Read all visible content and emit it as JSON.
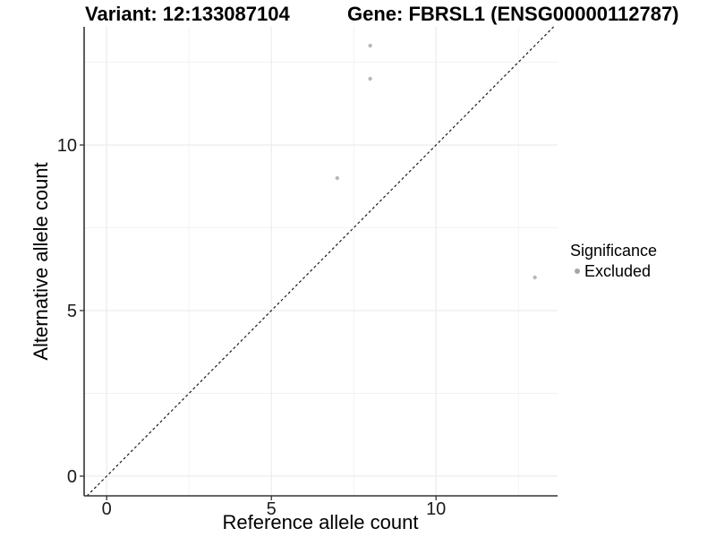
{
  "chart_data": {
    "type": "scatter",
    "titles": {
      "left": "Variant: 12:133087104",
      "right": "Gene: FBRSL1 (ENSG00000112787)"
    },
    "xlabel": "Reference allele count",
    "ylabel": "Alternative allele count",
    "x_ticks": {
      "values": [
        0,
        5,
        10
      ],
      "labels": [
        "0",
        "5",
        "10"
      ]
    },
    "y_ticks": {
      "values": [
        0,
        5,
        10
      ],
      "labels": [
        "0",
        "5",
        "10"
      ]
    },
    "x_minor_gridlines": [
      2.5,
      7.5,
      12.5
    ],
    "y_minor_gridlines": [
      2.5,
      7.5,
      12.5
    ],
    "xlim": [
      -0.68,
      13.7
    ],
    "ylim": [
      -0.6,
      13.57
    ],
    "grid": true,
    "identity_line": {
      "style": "dashed",
      "slope": 1,
      "intercept": 0,
      "color": "#1a1a1a"
    },
    "series": [
      {
        "name": "Excluded",
        "color": "#b8b8b8",
        "points": [
          [
            8,
            13
          ],
          [
            8,
            12
          ],
          [
            7,
            9
          ],
          [
            13,
            6
          ]
        ]
      }
    ],
    "legend": {
      "title": "Significance",
      "position": "right-middle",
      "entries": [
        {
          "label": "Excluded",
          "color": "#a6a6a6"
        }
      ]
    },
    "colors": {
      "background": "#ffffff",
      "grid_major": "#ececec",
      "grid_minor": "#f1f1f1",
      "axis": "#333333",
      "tick_text": "#1a1a1a",
      "point": "#b8b8b8"
    }
  }
}
